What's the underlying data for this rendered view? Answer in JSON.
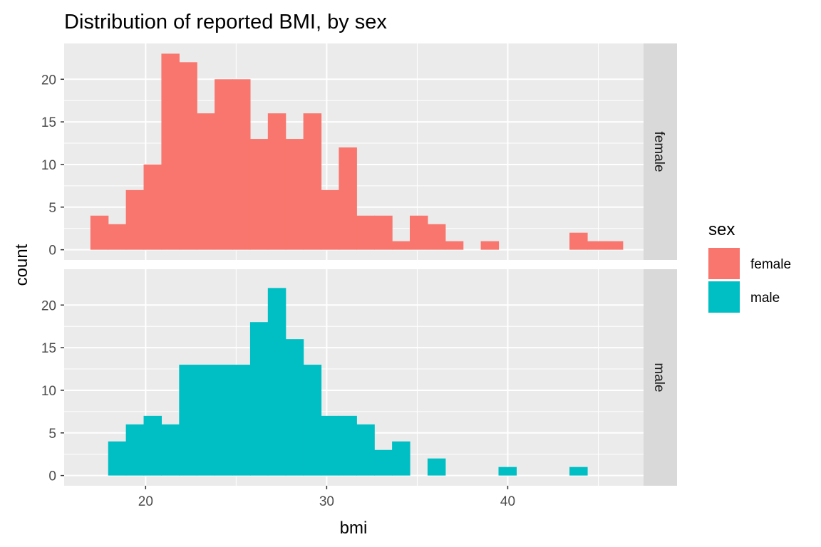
{
  "chart_data": {
    "type": "bar",
    "title": "Distribution of reported BMI, by sex",
    "xlabel": "bmi",
    "ylabel": "count",
    "xlim": [
      15.5,
      47.5
    ],
    "ylim": [
      -1.2,
      24.2
    ],
    "x_ticks": [
      20,
      30,
      40
    ],
    "y_ticks": [
      0,
      5,
      10,
      15,
      20
    ],
    "bin_width": 0.98,
    "bin_start": 16.95,
    "grid": true,
    "legend_position": "right",
    "legend_title": "sex",
    "facets": [
      "female",
      "male"
    ],
    "series": [
      {
        "name": "female",
        "color": "#F8766D",
        "values": [
          4,
          3,
          7,
          10,
          23,
          22,
          16,
          20,
          20,
          13,
          16,
          13,
          16,
          7,
          12,
          4,
          4,
          1,
          4,
          3,
          1,
          0,
          1,
          0,
          0,
          0,
          0,
          2,
          1,
          1
        ]
      },
      {
        "name": "male",
        "color": "#00BFC4",
        "values": [
          0,
          4,
          6,
          7,
          6,
          13,
          13,
          13,
          13,
          18,
          22,
          16,
          13,
          7,
          7,
          6,
          3,
          4,
          0,
          2,
          0,
          0,
          0,
          1,
          0,
          0,
          0,
          1,
          0,
          0
        ]
      }
    ]
  }
}
